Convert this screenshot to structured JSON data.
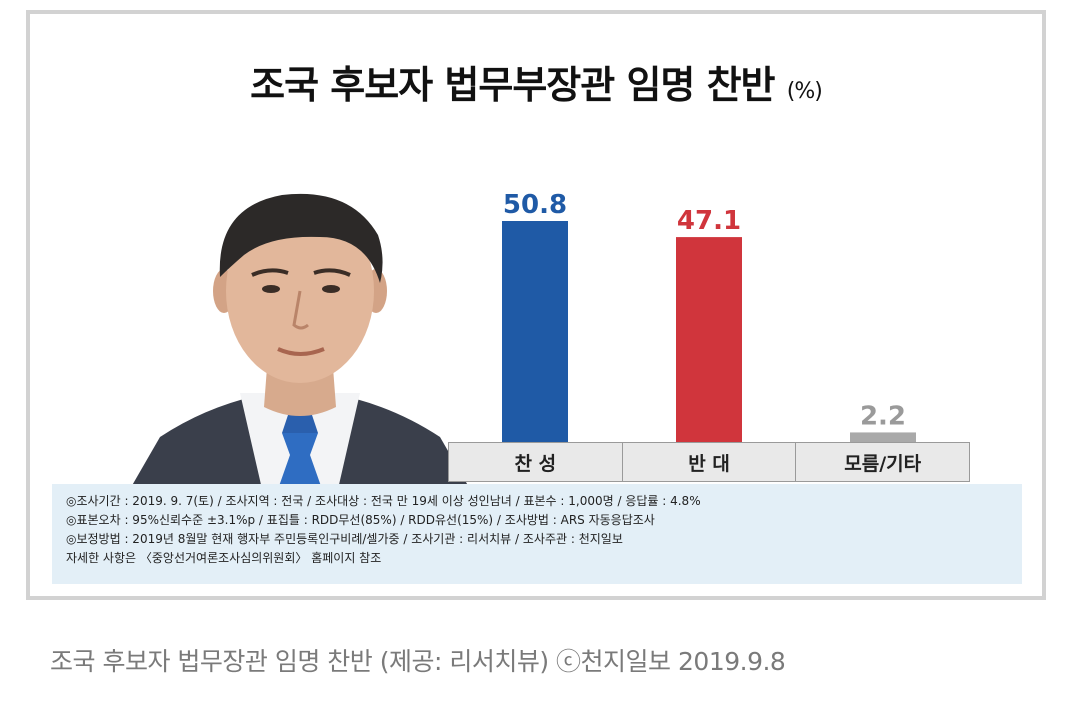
{
  "chart_data": {
    "type": "bar",
    "title": "조국 후보자 법무부장관 임명 찬반",
    "unit": "(%)",
    "categories": [
      "찬 성",
      "반 대",
      "모름/기타"
    ],
    "values": [
      50.8,
      47.1,
      2.2
    ],
    "value_labels": [
      "50.8",
      "47.1",
      "2.2"
    ],
    "colors": [
      "#1f5aa6",
      "#d0353c",
      "#a9a9a9"
    ],
    "value_label_colors": [
      "#1f5aa6",
      "#d0353c",
      "#9a9a9a"
    ],
    "ylim": [
      0,
      55
    ],
    "grid": false,
    "legend": "none"
  },
  "portrait": {
    "icon": "person-photo-icon"
  },
  "notes": [
    "◎조사기간 : 2019. 9. 7(토) / 조사지역 : 전국 / 조사대상 : 전국 만 19세 이상 성인남녀 / 표본수 : 1,000명 / 응답률 : 4.8%",
    "◎표본오차 : 95%신뢰수준 ±3.1%p / 표집틀 : RDD무선(85%) / RDD유선(15%) / 조사방법 : ARS 자동응답조사",
    "◎보정방법 : 2019년 8월말 현재 행자부 주민등록인구비례/셀가중 / 조사기관 : 리서치뷰 / 조사주관 : 천지일보",
    "자세한 사항은 〈중앙선거여론조사심의위원회〉 홈페이지 참조"
  ],
  "caption": "조국 후보자 법무장관 임명 찬반 (제공: 리서치뷰) ⓒ천지일보 2019.9.8"
}
